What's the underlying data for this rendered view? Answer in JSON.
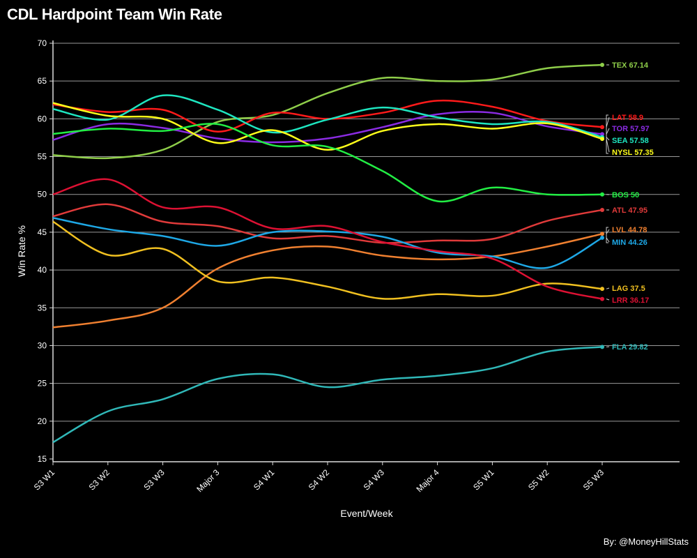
{
  "chart_data": {
    "type": "line",
    "title": "CDL Hardpoint Team Win Rate",
    "xlabel": "Event/Week",
    "ylabel": "Win Rate %",
    "credit": "By: @MoneyHillStats",
    "ylim": [
      15,
      70
    ],
    "yticks": [
      15,
      20,
      25,
      30,
      35,
      40,
      45,
      50,
      55,
      60,
      65,
      70
    ],
    "categories": [
      "S3 W1",
      "S3 W2",
      "S3 W3",
      "Major 3",
      "S4 W1",
      "S4 W2",
      "S4 W3",
      "Major 4",
      "S5 W1",
      "S5 W2",
      "S5 W3"
    ],
    "grid": true,
    "series": [
      {
        "name": "TEX",
        "label": "TEX 67.14",
        "color": "#8fce4a",
        "values": [
          55.2,
          54.8,
          55.9,
          59.6,
          60.5,
          63.4,
          65.4,
          65.0,
          65.2,
          66.7,
          67.14
        ]
      },
      {
        "name": "LAT",
        "label": "LAT 58.9",
        "color": "#ff1a1a",
        "values": [
          61.9,
          60.9,
          61.2,
          58.3,
          60.8,
          60.0,
          60.8,
          62.4,
          61.6,
          59.7,
          58.9
        ]
      },
      {
        "name": "TOR",
        "label": "TOR 57.97",
        "color": "#8a2be2",
        "values": [
          57.2,
          59.3,
          58.8,
          57.4,
          56.9,
          57.4,
          58.9,
          60.6,
          60.8,
          59.0,
          57.97
        ]
      },
      {
        "name": "SEA",
        "label": "SEA 57.58",
        "color": "#1ee6c0",
        "values": [
          61.3,
          59.9,
          63.1,
          61.2,
          58.2,
          59.9,
          61.5,
          60.2,
          59.3,
          59.6,
          57.58
        ]
      },
      {
        "name": "NYSL",
        "label": "NYSL 57.35",
        "color": "#ffff1a",
        "values": [
          62.1,
          60.4,
          60.0,
          56.8,
          58.5,
          55.9,
          58.4,
          59.3,
          58.7,
          59.4,
          57.35
        ]
      },
      {
        "name": "BOS",
        "label": "BOS 50",
        "color": "#22ee44",
        "values": [
          58.0,
          58.7,
          58.4,
          59.3,
          56.5,
          56.3,
          53.1,
          49.1,
          50.9,
          50.0,
          50.0
        ]
      },
      {
        "name": "ATL",
        "label": "ATL 47.95",
        "color": "#e03a3a",
        "values": [
          47.1,
          48.7,
          46.4,
          45.8,
          44.2,
          44.5,
          43.6,
          43.9,
          44.1,
          46.5,
          47.95
        ]
      },
      {
        "name": "LVL",
        "label": "LVL 44.78",
        "color": "#f08030",
        "values": [
          32.4,
          33.3,
          35.0,
          40.2,
          42.6,
          43.1,
          41.9,
          41.4,
          41.8,
          43.1,
          44.78
        ]
      },
      {
        "name": "MIN",
        "label": "MIN 44.26",
        "color": "#1ea8e6",
        "values": [
          46.9,
          45.4,
          44.5,
          43.2,
          45.0,
          45.1,
          44.4,
          42.3,
          41.8,
          40.3,
          44.26
        ]
      },
      {
        "name": "LAG",
        "label": "LAG 37.5",
        "color": "#f0c020",
        "values": [
          46.4,
          42.0,
          42.8,
          38.5,
          39.0,
          37.8,
          36.2,
          36.8,
          36.6,
          38.2,
          37.5
        ]
      },
      {
        "name": "LRR",
        "label": "LRR 36.17",
        "color": "#dd1133",
        "values": [
          50.0,
          52.0,
          48.3,
          48.3,
          45.5,
          45.8,
          43.7,
          42.5,
          41.5,
          37.8,
          36.17
        ]
      },
      {
        "name": "FLA",
        "label": "FLA 29.82",
        "color": "#30b8b8",
        "values": [
          17.2,
          21.3,
          22.9,
          25.6,
          26.2,
          24.5,
          25.5,
          26.0,
          27.0,
          29.2,
          29.82
        ]
      }
    ]
  }
}
